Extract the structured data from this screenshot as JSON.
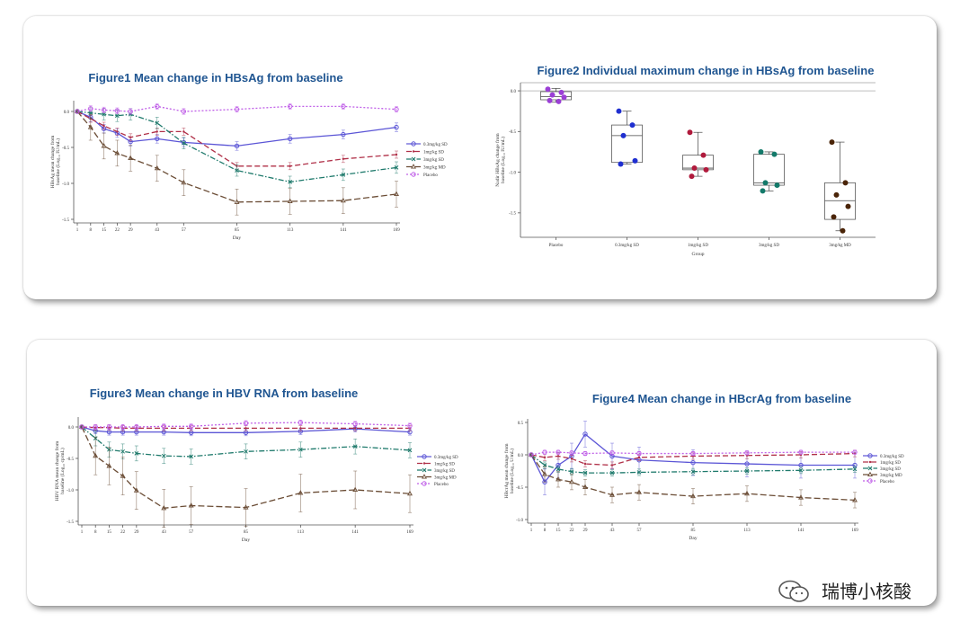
{
  "chart_data": [
    {
      "id": "fig1",
      "type": "line",
      "title": "Figure1 Mean change in HBsAg from baseline",
      "xlabel": "Day",
      "ylabel": [
        "HBsAg mean change from",
        "baseline (Log₁₀ IU/mL)"
      ],
      "x": [
        1,
        8,
        15,
        22,
        29,
        43,
        57,
        85,
        113,
        141,
        169
      ],
      "xticks": [
        1,
        8,
        15,
        22,
        29,
        43,
        57,
        85,
        113,
        141,
        169
      ],
      "yticks": [
        0.0,
        -0.5,
        -1.0,
        -1.5
      ],
      "ylim": [
        -1.5,
        0.1
      ],
      "legend_position": "right",
      "series": [
        {
          "name": "0.3mg/kg SD",
          "color": "#5b55d6",
          "dash": "",
          "marker": "circle",
          "values": [
            0,
            -0.08,
            -0.24,
            -0.3,
            -0.42,
            -0.38,
            -0.43,
            -0.48,
            -0.38,
            -0.32,
            -0.22
          ],
          "err": 0.06
        },
        {
          "name": "1mg/kg SD",
          "color": "#b03048",
          "dash": "6,3",
          "marker": "dot",
          "values": [
            0,
            -0.1,
            -0.2,
            -0.28,
            -0.36,
            -0.28,
            -0.28,
            -0.76,
            -0.76,
            -0.66,
            -0.6
          ],
          "err": 0.05
        },
        {
          "name": "3mg/kg SD",
          "color": "#1f7a6c",
          "dash": "6,2,1.5,2",
          "marker": "x",
          "values": [
            0,
            -0.02,
            -0.04,
            -0.06,
            -0.04,
            -0.16,
            -0.44,
            -0.82,
            -0.98,
            -0.88,
            -0.78
          ],
          "err": 0.08
        },
        {
          "name": "3mg/kg MD",
          "color": "#6b4d36",
          "dash": "7,3",
          "marker": "tri",
          "values": [
            0,
            -0.22,
            -0.48,
            -0.58,
            -0.65,
            -0.79,
            -0.99,
            -1.26,
            -1.25,
            -1.24,
            -1.15
          ],
          "err": 0.18
        },
        {
          "name": "Placebo",
          "color": "#c060e8",
          "dash": "2,2",
          "marker": "circle",
          "values": [
            0,
            0.04,
            0.02,
            0.01,
            0.0,
            0.07,
            0.0,
            0.03,
            0.07,
            0.07,
            0.03
          ],
          "err": 0.04
        }
      ]
    },
    {
      "id": "fig2",
      "type": "box",
      "title": "Figure2 Individual maximum change in HBsAg from baseline",
      "xlabel": "Group",
      "ylabel": [
        "Nadir HBsAg change from",
        "baseline (Log₁₀ IU/mL)"
      ],
      "yticks": [
        0.0,
        -0.5,
        -1.0,
        -1.5
      ],
      "ylim": [
        -1.8,
        0.1
      ],
      "groups": [
        {
          "name": "Placebo",
          "color": "#9b3fd6",
          "points": [
            0.02,
            -0.02,
            -0.05,
            -0.08,
            -0.12,
            -0.13
          ],
          "q1": -0.11,
          "median": -0.07,
          "q3": -0.01,
          "min": -0.14,
          "max": 0.03
        },
        {
          "name": "0.3mg/kg SD",
          "color": "#1f2fd0",
          "points": [
            -0.25,
            -0.42,
            -0.55,
            -0.86,
            -0.9
          ],
          "q1": -0.88,
          "median": -0.55,
          "q3": -0.42,
          "min": -0.9,
          "max": -0.25
        },
        {
          "name": "1mg/kg SD",
          "color": "#b01a3c",
          "points": [
            -0.51,
            -0.79,
            -0.95,
            -0.97,
            -1.05
          ],
          "q1": -0.97,
          "median": -0.95,
          "q3": -0.79,
          "min": -1.05,
          "max": -0.51
        },
        {
          "name": "3mg/kg SD",
          "color": "#137a6a",
          "points": [
            -0.75,
            -0.78,
            -1.13,
            -1.16,
            -1.23
          ],
          "q1": -1.16,
          "median": -1.13,
          "q3": -0.78,
          "min": -1.23,
          "max": -0.75
        },
        {
          "name": "3mg/kg MD",
          "color": "#4a2408",
          "points": [
            -0.63,
            -1.13,
            -1.28,
            -1.42,
            -1.55,
            -1.72
          ],
          "q1": -1.58,
          "median": -1.35,
          "q3": -1.13,
          "min": -1.72,
          "max": -0.63
        }
      ]
    },
    {
      "id": "fig3",
      "type": "line",
      "title": "Figure3 Mean change in HBV RNA from baseline",
      "xlabel": "Day",
      "ylabel": [
        "HBV RNA mean change from",
        "baseline (Log₁₀ cp/mL)"
      ],
      "x": [
        1,
        8,
        15,
        22,
        29,
        43,
        57,
        85,
        113,
        141,
        169
      ],
      "xticks": [
        1,
        8,
        15,
        22,
        29,
        43,
        57,
        85,
        113,
        141,
        169
      ],
      "yticks": [
        0.0,
        -0.5,
        -1.0,
        -1.5
      ],
      "ylim": [
        -1.5,
        0.1
      ],
      "legend_position": "right",
      "series": [
        {
          "name": "0.3mg/kg SD",
          "color": "#5b55d6",
          "dash": "",
          "marker": "circle",
          "values": [
            0,
            -0.06,
            -0.08,
            -0.08,
            -0.08,
            -0.08,
            -0.09,
            -0.09,
            -0.07,
            -0.03,
            -0.08
          ],
          "err": 0.05
        },
        {
          "name": "1mg/kg SD",
          "color": "#b03048",
          "dash": "6,3",
          "marker": "dot",
          "values": [
            0,
            -0.01,
            -0.01,
            -0.02,
            -0.02,
            -0.02,
            -0.02,
            -0.02,
            -0.02,
            -0.02,
            -0.02
          ],
          "err": 0.04
        },
        {
          "name": "3mg/kg SD",
          "color": "#1f7a6c",
          "dash": "6,2,1.5,2",
          "marker": "x",
          "values": [
            0,
            -0.18,
            -0.36,
            -0.39,
            -0.42,
            -0.46,
            -0.47,
            -0.39,
            -0.36,
            -0.31,
            -0.37
          ],
          "err": 0.12
        },
        {
          "name": "3mg/kg MD",
          "color": "#6b4d36",
          "dash": "7,3",
          "marker": "tri",
          "values": [
            0,
            -0.46,
            -0.62,
            -0.78,
            -1.01,
            -1.29,
            -1.25,
            -1.28,
            -1.05,
            -1.0,
            -1.06
          ],
          "err": 0.3
        },
        {
          "name": "Placebo",
          "color": "#c060e8",
          "dash": "2,2",
          "marker": "circle",
          "values": [
            0,
            0.0,
            0.0,
            0.0,
            0.0,
            0.01,
            0.01,
            0.06,
            0.07,
            0.05,
            0.02
          ],
          "err": 0.04
        }
      ]
    },
    {
      "id": "fig4",
      "type": "line",
      "title": "Figure4 Mean change in HBcrAg from baseline",
      "xlabel": "Day",
      "ylabel": [
        "HBcrAg mean change from",
        "baseline (Log₁₀ U/mL)"
      ],
      "x": [
        1,
        8,
        15,
        22,
        29,
        43,
        57,
        85,
        113,
        141,
        169
      ],
      "xticks": [
        1,
        8,
        15,
        22,
        29,
        43,
        57,
        85,
        113,
        141,
        169
      ],
      "yticks": [
        0.5,
        0.0,
        -0.5,
        -1.0
      ],
      "ylim": [
        -1.0,
        0.5
      ],
      "legend_position": "right",
      "series": [
        {
          "name": "0.3mg/kg SD",
          "color": "#5b55d6",
          "dash": "",
          "marker": "circle",
          "values": [
            0,
            -0.42,
            -0.16,
            -0.02,
            0.32,
            -0.02,
            -0.08,
            -0.12,
            -0.14,
            -0.16,
            -0.16
          ],
          "err": 0.2
        },
        {
          "name": "1mg/kg SD",
          "color": "#b03048",
          "dash": "6,3",
          "marker": "dot",
          "values": [
            0,
            -0.04,
            -0.02,
            -0.06,
            -0.14,
            -0.16,
            -0.04,
            -0.02,
            -0.01,
            0.0,
            0.02
          ],
          "err": 0.05
        },
        {
          "name": "3mg/kg SD",
          "color": "#1f7a6c",
          "dash": "6,2,1.5,2",
          "marker": "x",
          "values": [
            0,
            -0.16,
            -0.22,
            -0.26,
            -0.28,
            -0.28,
            -0.27,
            -0.26,
            -0.25,
            -0.24,
            -0.22
          ],
          "err": 0.05
        },
        {
          "name": "3mg/kg MD",
          "color": "#6b4d36",
          "dash": "7,3",
          "marker": "tri",
          "values": [
            0,
            -0.3,
            -0.38,
            -0.42,
            -0.5,
            -0.62,
            -0.58,
            -0.64,
            -0.6,
            -0.66,
            -0.7
          ],
          "err": 0.12
        },
        {
          "name": "Placebo",
          "color": "#c060e8",
          "dash": "2,2",
          "marker": "circle",
          "values": [
            0,
            0.04,
            0.04,
            0.03,
            0.02,
            0.03,
            0.02,
            0.02,
            0.03,
            0.04,
            0.04
          ],
          "err": 0.03
        }
      ]
    }
  ],
  "watermark": {
    "icon": "wechat-icon",
    "text": "瑞博小核酸"
  }
}
